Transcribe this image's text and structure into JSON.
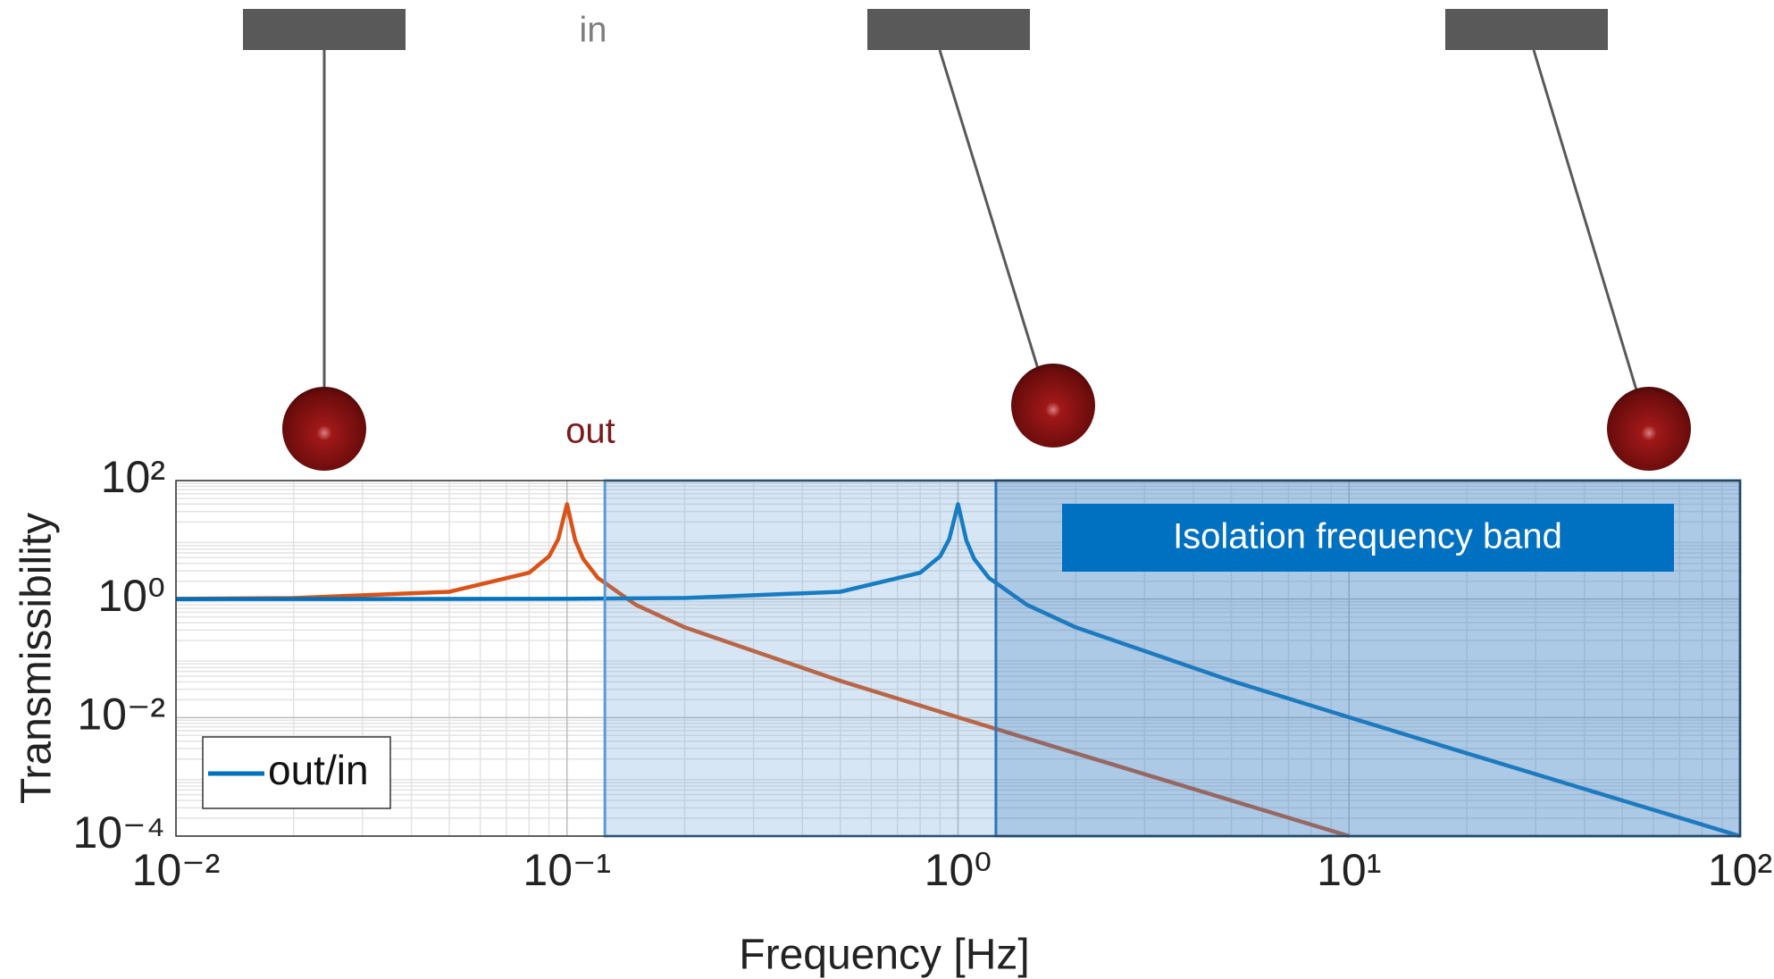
{
  "chart_data": {
    "type": "line",
    "xscale": "log",
    "yscale": "log",
    "grid": true,
    "xlabel": "Frequency [Hz]",
    "ylabel": "Transmissibility",
    "xlim": [
      0.01,
      100
    ],
    "ylim": [
      0.0001,
      100
    ],
    "xticks": [
      {
        "value": 0.01,
        "label": "10⁻²"
      },
      {
        "value": 0.1,
        "label": "10⁻¹"
      },
      {
        "value": 1,
        "label": "10⁰"
      },
      {
        "value": 10,
        "label": "10¹"
      },
      {
        "value": 100,
        "label": "10²"
      }
    ],
    "yticks": [
      {
        "value": 0.0001,
        "label": "10⁻⁴"
      },
      {
        "value": 0.01,
        "label": "10⁻²"
      },
      {
        "value": 1,
        "label": "10⁰"
      },
      {
        "value": 100,
        "label": "10²"
      }
    ],
    "series": [
      {
        "color": "#d95319",
        "x": [
          0.01,
          0.02,
          0.05,
          0.08,
          0.09,
          0.095,
          0.1,
          0.105,
          0.11,
          0.12,
          0.15,
          0.2,
          0.5,
          1,
          2,
          5,
          10
        ],
        "values": [
          1.01,
          1.04,
          1.33,
          2.78,
          5.26,
          10.3,
          40,
          9.76,
          4.76,
          2.27,
          0.8,
          0.333,
          0.0417,
          0.0101,
          0.0025,
          0.0004,
          0.0001
        ]
      },
      {
        "name": "out/in",
        "color": "#0072bd",
        "x": [
          0.01,
          0.1,
          0.2,
          0.5,
          0.8,
          0.9,
          0.95,
          1,
          1.05,
          1.1,
          1.2,
          1.5,
          2,
          5,
          10,
          20,
          50,
          100
        ],
        "values": [
          1,
          1.01,
          1.04,
          1.33,
          2.78,
          5.26,
          10.3,
          40,
          9.76,
          4.76,
          2.27,
          0.8,
          0.333,
          0.0417,
          0.0101,
          0.0025,
          0.0004,
          0.0001
        ]
      }
    ],
    "shaded_regions": [
      {
        "xlim": [
          0.125,
          100
        ],
        "color": "#5b9bd5"
      },
      {
        "xlim": [
          1.25,
          100
        ],
        "color": "#2e75b6",
        "label": "Isolation frequency band"
      }
    ],
    "annotations": [
      "in",
      "out"
    ]
  }
}
